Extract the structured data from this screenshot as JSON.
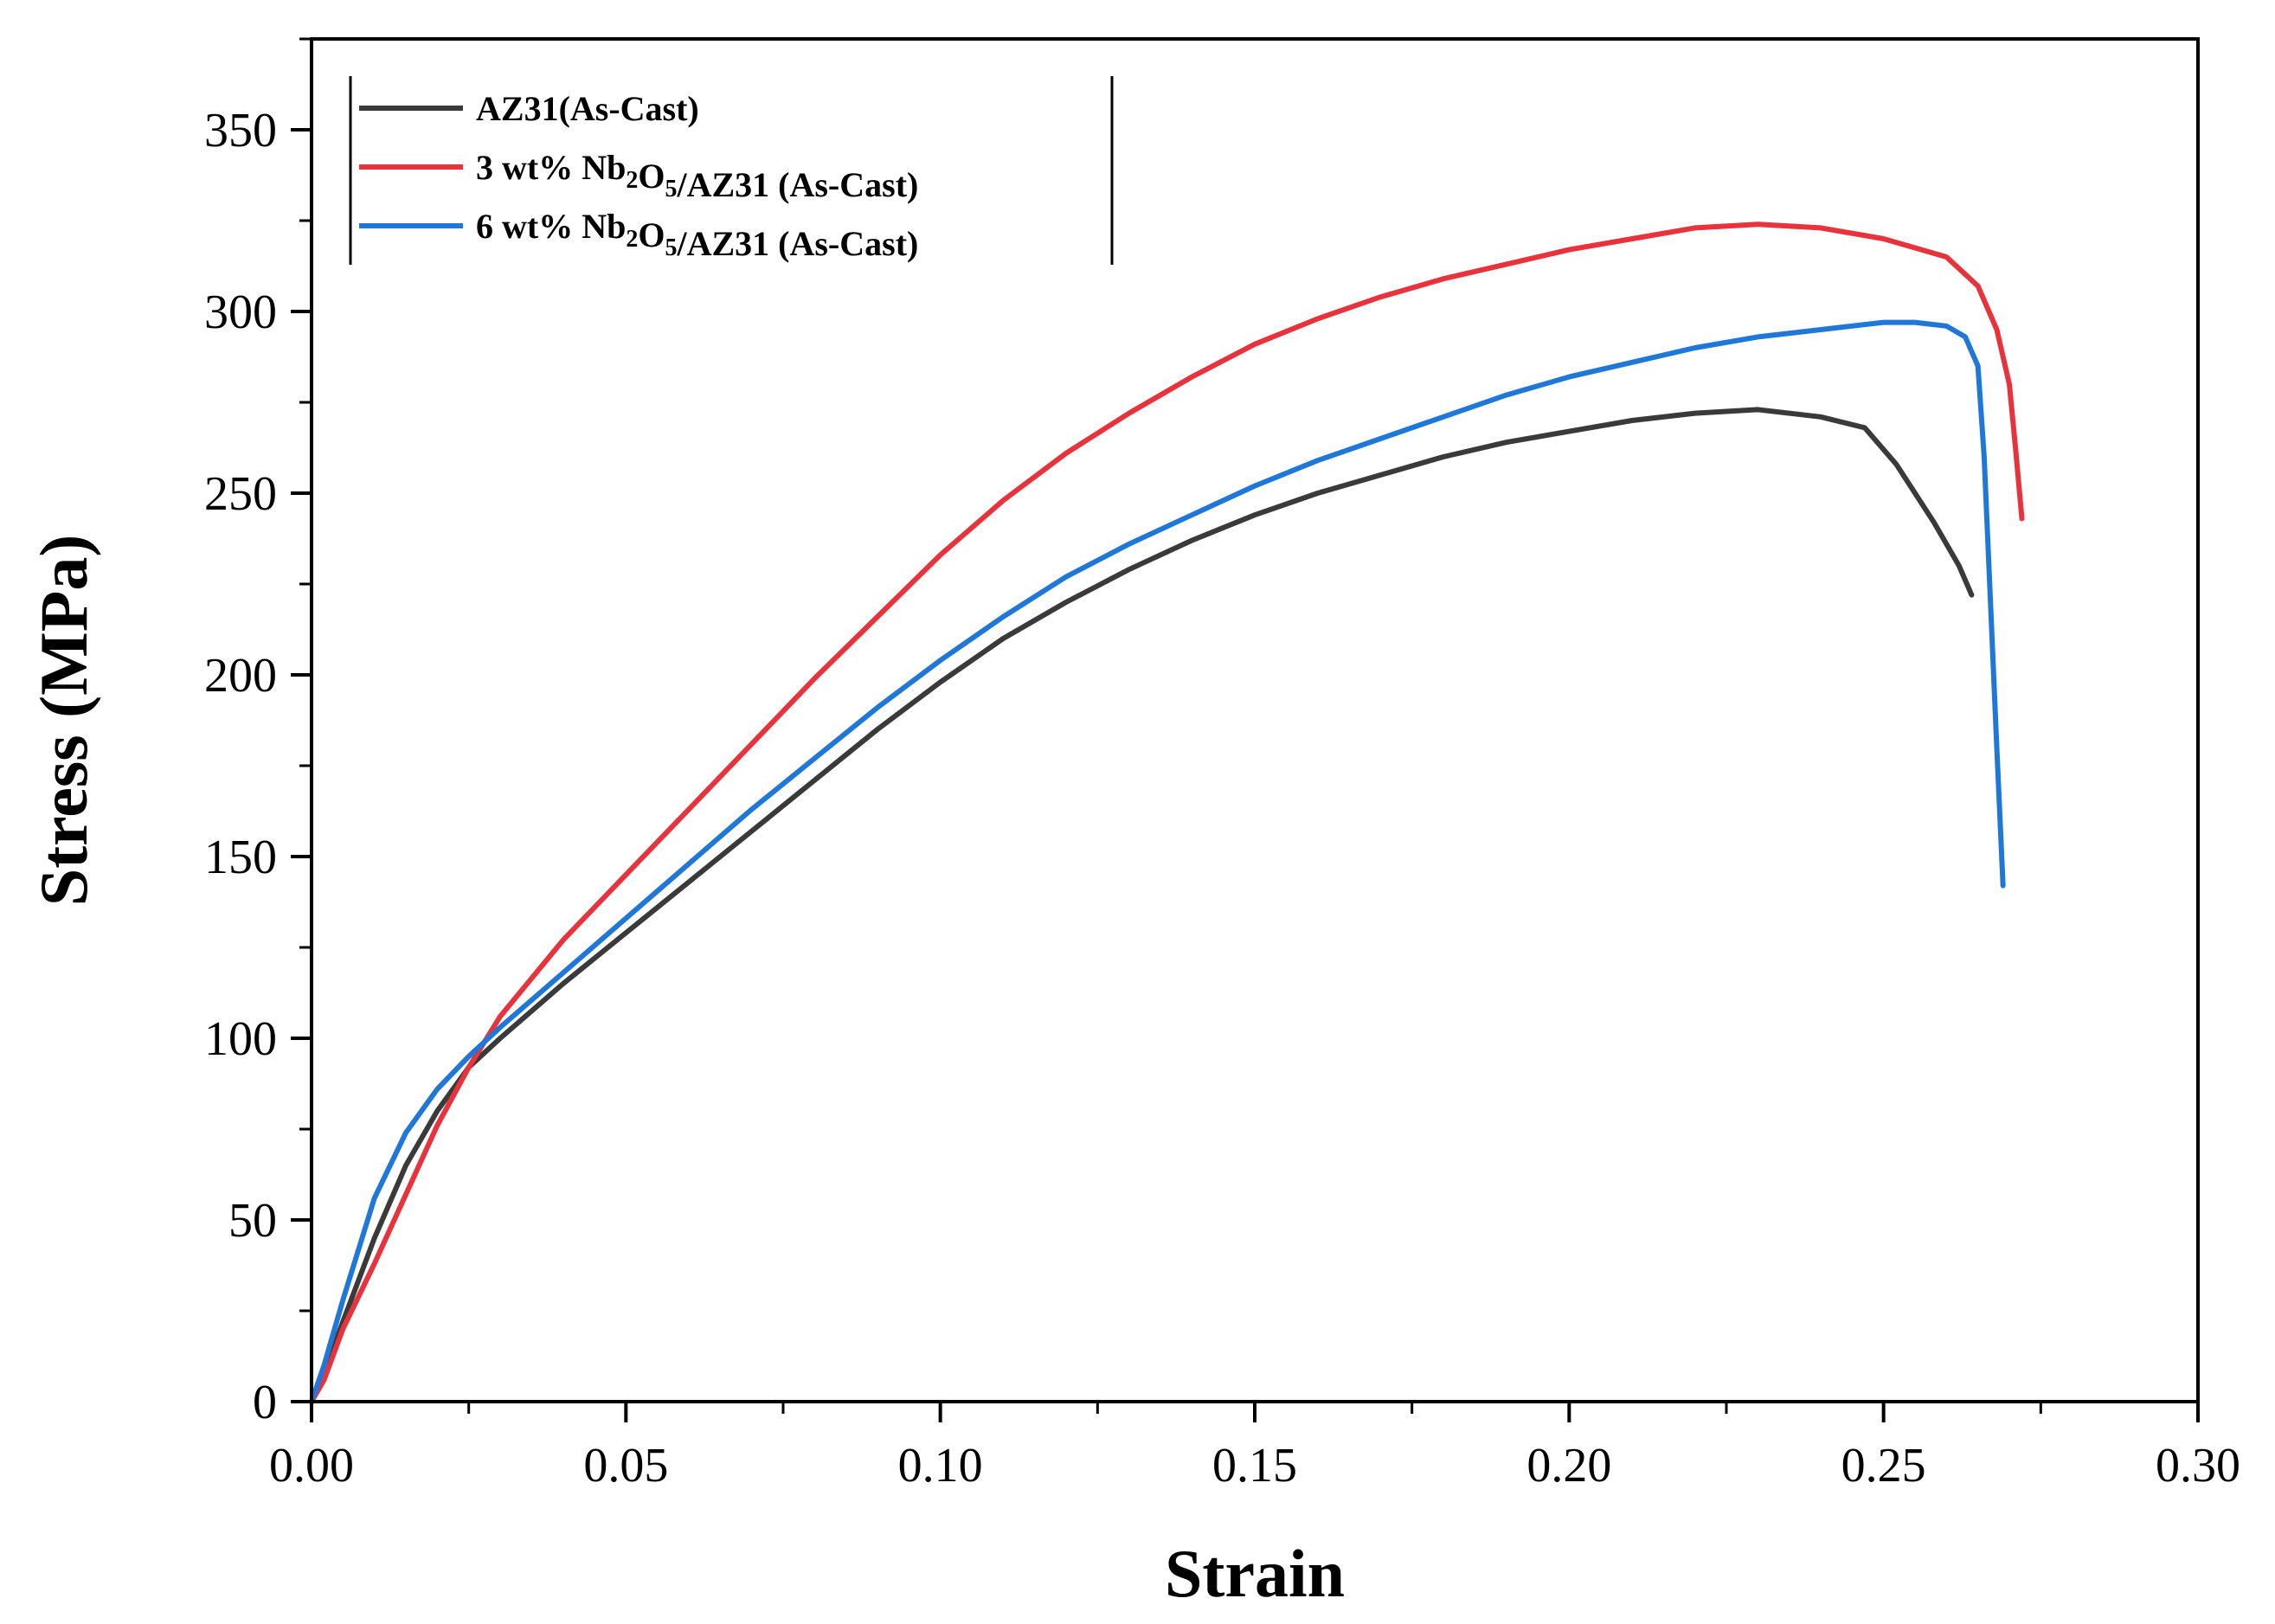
{
  "chart_data": {
    "type": "line",
    "xlabel": "Strain",
    "ylabel": "Stress (MPa)",
    "xlim": [
      0,
      0.3
    ],
    "ylim": [
      0,
      375
    ],
    "xticks": [
      "0.00",
      "0.05",
      "0.10",
      "0.15",
      "0.20",
      "0.25",
      "0.30"
    ],
    "yticks": [
      "0",
      "50",
      "100",
      "150",
      "200",
      "250",
      "300",
      "350"
    ],
    "grid": false,
    "legend_position": "top-left",
    "series": [
      {
        "name": "AZ31(As-Cast)",
        "legend": {
          "pre": "AZ31(As-Cast)",
          "sub": "",
          "post": ""
        },
        "color": "#3a3a3a",
        "x": [
          0,
          0.002,
          0.005,
          0.01,
          0.015,
          0.02,
          0.025,
          0.03,
          0.04,
          0.05,
          0.06,
          0.07,
          0.08,
          0.09,
          0.1,
          0.11,
          0.12,
          0.13,
          0.14,
          0.15,
          0.16,
          0.17,
          0.18,
          0.19,
          0.2,
          0.21,
          0.22,
          0.23,
          0.24,
          0.247,
          0.252,
          0.258,
          0.262,
          0.264
        ],
        "y": [
          0,
          8,
          22,
          45,
          65,
          80,
          92,
          100,
          115,
          129,
          143,
          157,
          171,
          185,
          198,
          210,
          220,
          229,
          237,
          244,
          250,
          255,
          260,
          264,
          267,
          270,
          272,
          273,
          271,
          268,
          258,
          242,
          230,
          222
        ]
      },
      {
        "name": "3 wt% Nb2O5/AZ31 (As-Cast)",
        "legend": {
          "pre": "3 wt% Nb",
          "sub": "2",
          "mid": "O",
          "sub2": "5",
          "post": "/AZ31 (As-Cast)"
        },
        "color": "#e8323c",
        "x": [
          0,
          0.002,
          0.005,
          0.01,
          0.015,
          0.02,
          0.025,
          0.03,
          0.04,
          0.05,
          0.06,
          0.07,
          0.08,
          0.09,
          0.1,
          0.11,
          0.12,
          0.13,
          0.14,
          0.15,
          0.16,
          0.17,
          0.18,
          0.19,
          0.2,
          0.21,
          0.22,
          0.23,
          0.24,
          0.25,
          0.26,
          0.265,
          0.268,
          0.27,
          0.271,
          0.272
        ],
        "y": [
          0,
          6,
          20,
          38,
          57,
          76,
          92,
          106,
          127,
          145,
          163,
          181,
          199,
          216,
          233,
          248,
          261,
          272,
          282,
          291,
          298,
          304,
          309,
          313,
          317,
          320,
          323,
          324,
          323,
          320,
          315,
          307,
          295,
          280,
          262,
          243
        ]
      },
      {
        "name": "6 wt% Nb2O5/AZ31 (As-Cast)",
        "legend": {
          "pre": "6 wt% Nb",
          "sub": "2",
          "mid": "O",
          "sub2": "5",
          "post": "/AZ31 (As-Cast)"
        },
        "color": "#1f78d8",
        "x": [
          0,
          0.002,
          0.005,
          0.01,
          0.015,
          0.02,
          0.025,
          0.03,
          0.04,
          0.05,
          0.06,
          0.07,
          0.08,
          0.09,
          0.1,
          0.11,
          0.12,
          0.13,
          0.14,
          0.15,
          0.16,
          0.17,
          0.18,
          0.19,
          0.2,
          0.21,
          0.22,
          0.23,
          0.24,
          0.25,
          0.255,
          0.26,
          0.263,
          0.265,
          0.266,
          0.267,
          0.268,
          0.269
        ],
        "y": [
          0,
          10,
          28,
          56,
          74,
          86,
          95,
          103,
          118,
          133,
          148,
          163,
          177,
          191,
          204,
          216,
          227,
          236,
          244,
          252,
          259,
          265,
          271,
          277,
          282,
          286,
          290,
          293,
          295,
          297,
          297,
          296,
          293,
          285,
          260,
          220,
          180,
          142
        ]
      }
    ]
  }
}
